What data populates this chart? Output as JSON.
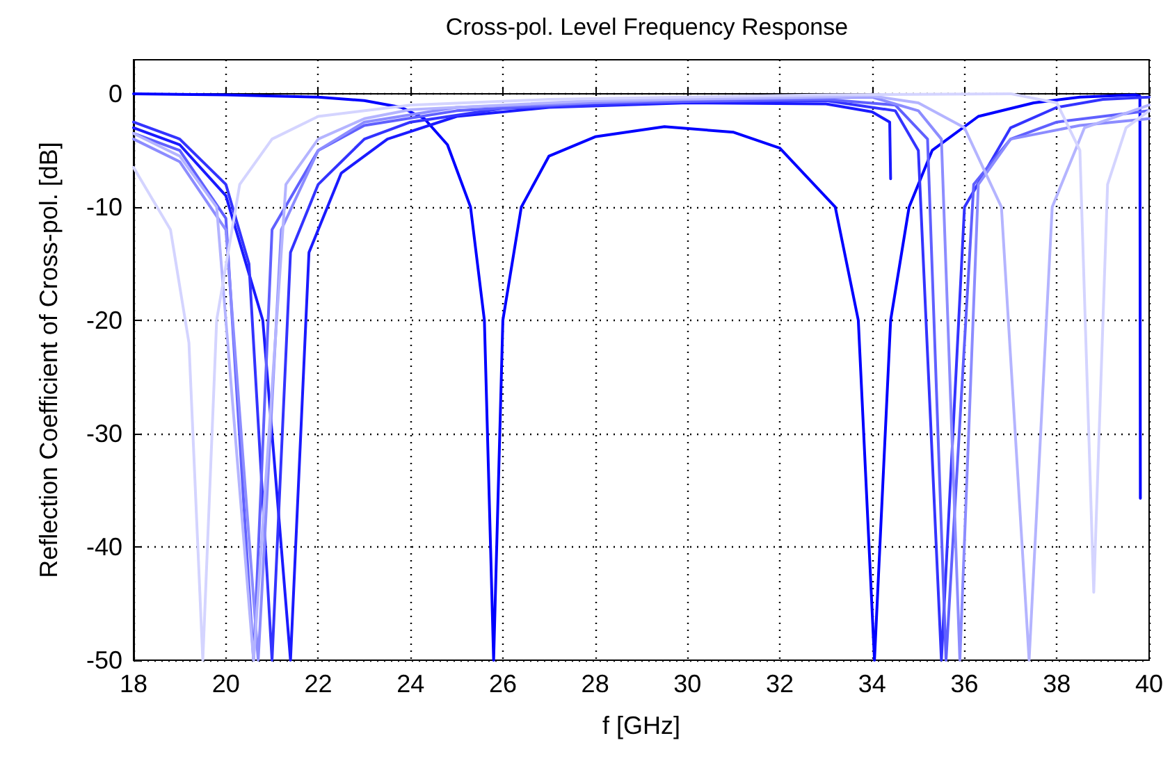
{
  "chart_data": {
    "type": "line",
    "title": "Cross-pol. Level Frequency Response",
    "xlabel": "f [GHz]",
    "ylabel": "Reflection Coefficient of Cross-pol. [dB]",
    "xlim": [
      18,
      40
    ],
    "xticks": [
      18,
      20,
      22,
      24,
      26,
      28,
      30,
      32,
      34,
      36,
      38,
      40
    ],
    "ylim": [
      -50,
      3
    ],
    "yticks": [
      -50,
      -40,
      -30,
      -20,
      -10,
      0
    ],
    "grid": true,
    "legend": false,
    "marker": "none",
    "line_style": "solid",
    "series": [
      {
        "color": "#0000ff",
        "x": [
          18,
          20,
          22,
          23,
          23.8,
          24.3,
          24.8,
          25.3,
          25.6,
          25.8,
          26.0,
          26.4,
          27,
          28,
          29.5,
          31,
          32,
          33.2,
          33.7,
          34.05,
          34.4,
          34.8,
          35.3,
          36.3,
          37.5,
          38.5,
          39.7,
          39.8,
          39.81
        ],
        "values": [
          0,
          -0.1,
          -0.3,
          -0.6,
          -1.2,
          -2.2,
          -4.5,
          -10,
          -20,
          -50,
          -20,
          -10,
          -5.5,
          -3.8,
          -2.9,
          -3.4,
          -4.8,
          -10,
          -20,
          -50,
          -20,
          -10,
          -5,
          -2,
          -0.8,
          -0.3,
          -0.1,
          -0.2,
          -35.7
        ]
      },
      {
        "color": "#1a1aff",
        "x": [
          18,
          19,
          20,
          20.8,
          21.4,
          21.8,
          22.5,
          23.5,
          25,
          27,
          30,
          33,
          34,
          34.38,
          34.4
        ],
        "values": [
          -3,
          -4.5,
          -9,
          -20,
          -50,
          -14,
          -7,
          -4,
          -2,
          -1.2,
          -0.8,
          -0.9,
          -1.6,
          -2.5,
          -7.5
        ]
      },
      {
        "color": "#3333ff",
        "x": [
          18,
          19,
          20,
          20.5,
          21.0,
          21.4,
          22,
          23,
          24,
          26,
          30,
          33,
          34.5,
          35,
          35.5,
          36,
          37,
          38,
          39,
          40
        ],
        "values": [
          -2.5,
          -4,
          -8,
          -15,
          -50,
          -14,
          -8,
          -4,
          -2.5,
          -1.3,
          -0.7,
          -0.6,
          -1.5,
          -5,
          -50,
          -10,
          -3,
          -1.2,
          -0.5,
          -0.3
        ]
      },
      {
        "color": "#6060ff",
        "x": [
          18,
          19,
          20,
          20.6,
          21.0,
          22,
          23,
          25,
          28,
          33,
          34.5,
          35.2,
          35.6,
          36.2,
          37,
          38,
          40
        ],
        "values": [
          -3.5,
          -5,
          -11,
          -50,
          -12,
          -5,
          -2.8,
          -1.5,
          -0.8,
          -0.5,
          -1,
          -4,
          -50,
          -8,
          -4,
          -2.5,
          -1.5
        ]
      },
      {
        "color": "#8c8cff",
        "x": [
          18,
          19,
          20,
          20.7,
          21.2,
          22,
          23,
          25,
          30,
          34,
          35,
          35.5,
          35.9,
          36.3,
          37,
          38.5,
          40
        ],
        "values": [
          -4,
          -6,
          -12,
          -50,
          -12,
          -5,
          -2.5,
          -1.2,
          -0.5,
          -0.3,
          -1.5,
          -4,
          -50,
          -8,
          -4,
          -2.8,
          -2.2
        ]
      },
      {
        "color": "#b4b4ff",
        "x": [
          18,
          19,
          19.8,
          20.6,
          21.3,
          22,
          23,
          24,
          28,
          34,
          35,
          36,
          36.8,
          37.4,
          37.9,
          38.6,
          40
        ],
        "values": [
          -3.5,
          -5.5,
          -10,
          -50,
          -8,
          -4,
          -2.2,
          -1.4,
          -0.6,
          -0.2,
          -0.8,
          -3,
          -10,
          -50,
          -10,
          -3,
          -1
        ]
      },
      {
        "color": "#d4d4ff",
        "x": [
          18,
          18.8,
          19.2,
          19.5,
          19.8,
          20.3,
          21,
          22,
          24,
          27,
          33,
          37,
          38,
          38.5,
          38.8,
          39.1,
          39.5,
          40
        ],
        "values": [
          -6.5,
          -12,
          -22,
          -50,
          -20,
          -8,
          -4,
          -2,
          -1,
          -0.5,
          -0.1,
          0,
          -0.8,
          -5,
          -44,
          -8,
          -3,
          -1.5
        ]
      }
    ]
  }
}
